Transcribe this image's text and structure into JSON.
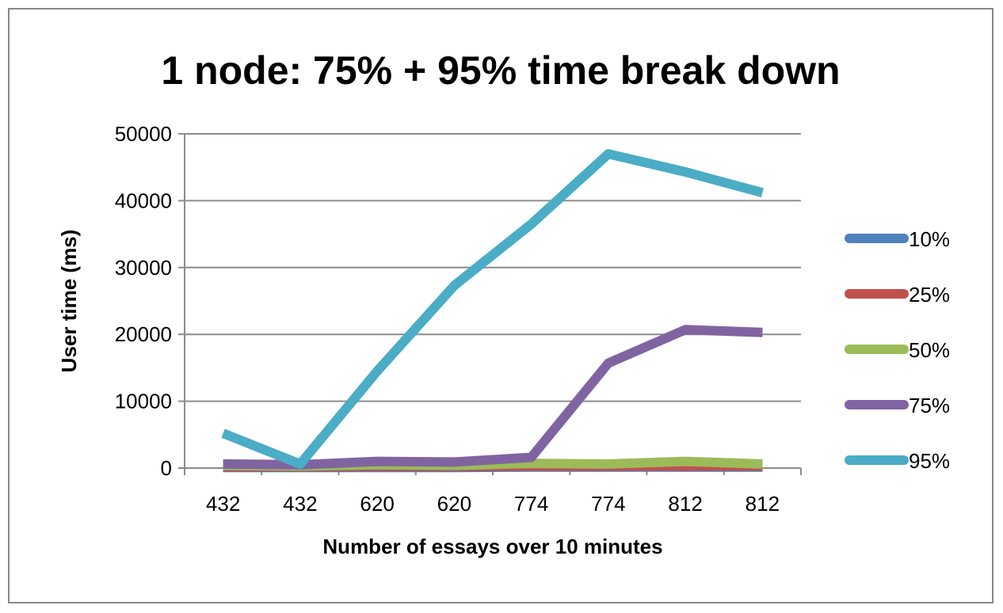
{
  "chart_data": {
    "type": "line",
    "title": "1 node: 75% + 95% time break down",
    "xlabel": "Number of essays  over 10 minutes",
    "ylabel": "User time (ms)",
    "categories": [
      "432",
      "432",
      "620",
      "620",
      "774",
      "774",
      "812",
      "812"
    ],
    "ylim": [
      0,
      50000
    ],
    "yticks": [
      0,
      10000,
      20000,
      30000,
      40000,
      50000
    ],
    "grid": true,
    "legend_position": "right",
    "series": [
      {
        "name": "10%",
        "color": "#4f81bd",
        "values": [
          100,
          100,
          100,
          100,
          150,
          150,
          150,
          150
        ]
      },
      {
        "name": "25%",
        "color": "#c0504d",
        "values": [
          200,
          200,
          250,
          250,
          300,
          300,
          300,
          300
        ]
      },
      {
        "name": "50%",
        "color": "#9bbb59",
        "values": [
          400,
          300,
          500,
          400,
          700,
          600,
          1000,
          600
        ]
      },
      {
        "name": "75%",
        "color": "#8064a2",
        "values": [
          600,
          500,
          1000,
          900,
          1600,
          15700,
          20700,
          20300
        ]
      },
      {
        "name": "95%",
        "color": "#4bacc6",
        "values": [
          5200,
          600,
          14500,
          27300,
          36500,
          47000,
          44300,
          41200
        ]
      }
    ]
  }
}
